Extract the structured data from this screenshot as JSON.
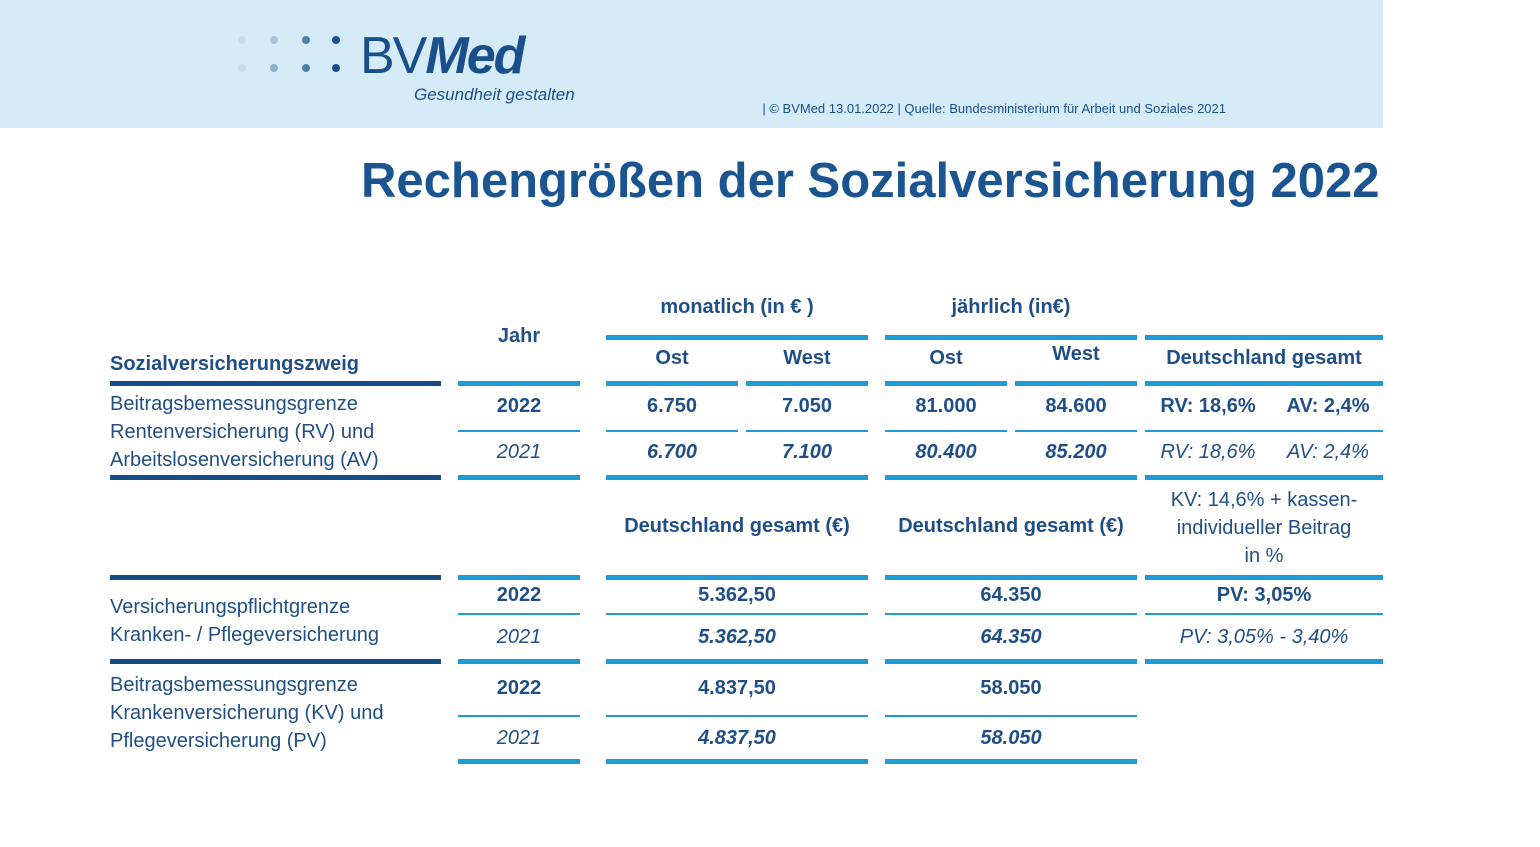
{
  "header": {
    "logo_bv": "BV",
    "logo_med": "Med",
    "tagline": "Gesundheit gestalten",
    "source": "| © BVMed 13.01.2022 | Quelle: Bundesministerium für Arbeit und Soziales 2021"
  },
  "title": "Rechengrößen der Sozialversicherung 2022",
  "table": {
    "col_branch": "Sozialversicherungszweig",
    "col_year": "Jahr",
    "col_monthly": "monatlich (in € )",
    "col_yearly": "jährlich (in€)",
    "ost": "Ost",
    "west": "West",
    "col_total": "Deutschland gesamt",
    "sub_total_eur": "Deutschland gesamt (€)",
    "kv_rate": [
      "KV: 14,6% + kassen-",
      "individueller Beitrag",
      "in %"
    ],
    "sections": [
      {
        "label": [
          "Beitragsbemessungsgrenze",
          "Rentenversicherung (RV) und",
          "Arbeitslosenversicherung (AV)"
        ],
        "rows": [
          {
            "year": "2022",
            "m_ost": "6.750",
            "m_west": "7.050",
            "y_ost": "81.000",
            "y_west": "84.600",
            "rv": "RV: 18,6%",
            "av": "AV: 2,4%"
          },
          {
            "year": "2021",
            "m_ost": "6.700",
            "m_west": "7.100",
            "y_ost": "80.400",
            "y_west": "85.200",
            "rv": "RV: 18,6%",
            "av": "AV: 2,4%"
          }
        ]
      },
      {
        "label": [
          "Versicherungspflichtgrenze",
          "Kranken- / Pflegeversicherung"
        ],
        "rows": [
          {
            "year": "2022",
            "monthly": "5.362,50",
            "yearly": "64.350",
            "rate": "PV: 3,05%"
          },
          {
            "year": "2021",
            "monthly": "5.362,50",
            "yearly": "64.350",
            "rate": "PV: 3,05% - 3,40%"
          }
        ]
      },
      {
        "label": [
          "Beitragsbemessungsgrenze",
          "Krankenversicherung (KV) und",
          "Pflegeversicherung (PV)"
        ],
        "rows": [
          {
            "year": "2022",
            "monthly": "4.837,50",
            "yearly": "58.050"
          },
          {
            "year": "2021",
            "monthly": "4.837,50",
            "yearly": "58.050"
          }
        ]
      }
    ]
  }
}
